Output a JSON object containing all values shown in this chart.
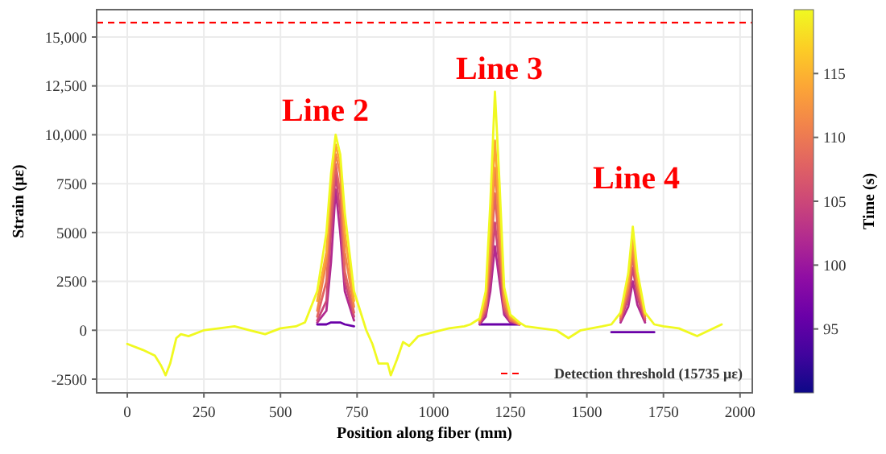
{
  "chart_data": {
    "type": "line",
    "xlabel": "Position along fiber (mm)",
    "ylabel": "Strain (με)",
    "clabel": "Time (s)",
    "x": [
      0,
      50,
      90,
      110,
      125,
      140,
      160,
      175,
      200,
      250,
      300,
      350,
      400,
      450,
      500,
      550,
      580,
      620,
      650,
      665,
      680,
      695,
      710,
      740,
      780,
      800,
      820,
      850,
      860,
      880,
      900,
      920,
      950,
      1000,
      1050,
      1100,
      1120,
      1150,
      1170,
      1185,
      1200,
      1215,
      1230,
      1250,
      1280,
      1300,
      1350,
      1400,
      1440,
      1480,
      1550,
      1580,
      1610,
      1635,
      1650,
      1665,
      1690,
      1720,
      1750,
      1800,
      1860,
      1900,
      1940
    ],
    "series": [
      {
        "color": "#6a00a8",
        "values": [
          null,
          null,
          null,
          null,
          null,
          null,
          null,
          null,
          null,
          null,
          null,
          null,
          null,
          null,
          null,
          null,
          null,
          300,
          300,
          400,
          400,
          400,
          300,
          200,
          null,
          null,
          null,
          null,
          null,
          null,
          null,
          null,
          null,
          null,
          null,
          null,
          null,
          300,
          300,
          300,
          300,
          300,
          300,
          300,
          300,
          null,
          null,
          null,
          null,
          null,
          null,
          -100,
          -100,
          -100,
          -100,
          -100,
          -100,
          -100,
          null,
          null,
          null,
          null,
          null
        ]
      },
      {
        "color": "#b12a90",
        "values": [
          null,
          null,
          null,
          null,
          null,
          null,
          null,
          null,
          null,
          null,
          null,
          null,
          null,
          null,
          null,
          null,
          null,
          400,
          1000,
          3500,
          7200,
          5000,
          2000,
          500,
          null,
          null,
          null,
          null,
          null,
          null,
          null,
          null,
          null,
          null,
          null,
          null,
          null,
          300,
          700,
          2000,
          4300,
          2500,
          800,
          400,
          300,
          null,
          null,
          null,
          null,
          null,
          null,
          null,
          400,
          1200,
          2500,
          1300,
          400,
          null,
          null,
          null,
          null,
          null,
          null
        ]
      },
      {
        "color": "#cc4778",
        "values": [
          null,
          null,
          null,
          null,
          null,
          null,
          null,
          null,
          null,
          null,
          null,
          null,
          null,
          null,
          null,
          null,
          null,
          500,
          1500,
          5000,
          8000,
          6000,
          2500,
          700,
          null,
          null,
          null,
          null,
          null,
          null,
          null,
          null,
          null,
          null,
          null,
          null,
          null,
          400,
          900,
          2700,
          5500,
          3200,
          1000,
          500,
          300,
          null,
          null,
          null,
          null,
          null,
          null,
          null,
          500,
          1600,
          3200,
          1700,
          500,
          null,
          null,
          null,
          null,
          null,
          null
        ]
      },
      {
        "color": "#e16462",
        "values": [
          null,
          null,
          null,
          null,
          null,
          null,
          null,
          null,
          null,
          null,
          null,
          null,
          null,
          null,
          null,
          null,
          null,
          700,
          2500,
          6000,
          8500,
          7000,
          3000,
          900,
          null,
          null,
          null,
          null,
          null,
          null,
          null,
          null,
          null,
          null,
          null,
          null,
          null,
          400,
          1100,
          3500,
          7000,
          4000,
          1200,
          500,
          300,
          null,
          null,
          null,
          null,
          null,
          null,
          null,
          600,
          1900,
          3800,
          2000,
          600,
          null,
          null,
          null,
          null,
          null,
          null
        ]
      },
      {
        "color": "#f2844b",
        "values": [
          null,
          null,
          null,
          null,
          null,
          null,
          null,
          null,
          null,
          null,
          null,
          null,
          null,
          null,
          null,
          null,
          null,
          1000,
          3500,
          7000,
          9000,
          8000,
          4000,
          1200,
          null,
          null,
          null,
          null,
          null,
          null,
          null,
          null,
          null,
          null,
          null,
          null,
          null,
          500,
          1300,
          4200,
          8300,
          5000,
          1500,
          600,
          300,
          null,
          null,
          null,
          null,
          null,
          null,
          null,
          700,
          2200,
          4200,
          2300,
          700,
          null,
          null,
          null,
          null,
          null,
          null
        ]
      },
      {
        "color": "#fca636",
        "values": [
          null,
          null,
          null,
          null,
          null,
          null,
          null,
          null,
          null,
          null,
          null,
          null,
          null,
          null,
          null,
          null,
          null,
          1500,
          4000,
          7500,
          9500,
          8500,
          5000,
          1500,
          null,
          null,
          null,
          null,
          null,
          null,
          null,
          null,
          null,
          null,
          null,
          null,
          null,
          500,
          1600,
          5000,
          9700,
          6000,
          1800,
          700,
          300,
          null,
          null,
          null,
          null,
          null,
          null,
          null,
          800,
          2500,
          4700,
          2600,
          800,
          null,
          null,
          null,
          null,
          null,
          null
        ]
      },
      {
        "color": "#f0f921",
        "values": [
          -700,
          -1000,
          -1300,
          -1800,
          -2300,
          -1700,
          -400,
          -200,
          -300,
          0,
          100,
          200,
          0,
          -200,
          100,
          200,
          400,
          2000,
          5000,
          8000,
          10000,
          9000,
          6000,
          2000,
          0,
          -700,
          -1700,
          -1700,
          -2300,
          -1500,
          -600,
          -800,
          -300,
          -100,
          100,
          200,
          300,
          600,
          2000,
          6500,
          12200,
          7500,
          2200,
          800,
          400,
          200,
          100,
          0,
          -400,
          0,
          200,
          300,
          900,
          2900,
          5300,
          3000,
          900,
          300,
          200,
          100,
          -300,
          0,
          300
        ]
      }
    ],
    "xlim": [
      -100,
      2040
    ],
    "xticks": [
      0,
      250,
      500,
      750,
      1000,
      1250,
      1500,
      1750,
      2000
    ],
    "ylim": [
      -3200,
      16400
    ],
    "yticks": [
      -2500,
      0,
      2500,
      5000,
      7500,
      {
        "value": 10000,
        "label": "10,000"
      },
      {
        "value": 12500,
        "label": "12,500"
      },
      {
        "value": 15000,
        "label": "15,000"
      }
    ],
    "clim": [
      90,
      120
    ],
    "cticks": [
      95,
      100,
      105,
      110,
      115
    ],
    "ref_lines": [
      {
        "axis": "y",
        "value": 15735,
        "label": "Detection threshold (15735 με)",
        "color": "#ff0000",
        "line_style": "dashed"
      }
    ],
    "annotations": [
      "Line 2",
      "Line 3",
      "Line 4"
    ],
    "grid": true,
    "legend": "bottom right",
    "marker": "none",
    "line_style": "solid"
  }
}
